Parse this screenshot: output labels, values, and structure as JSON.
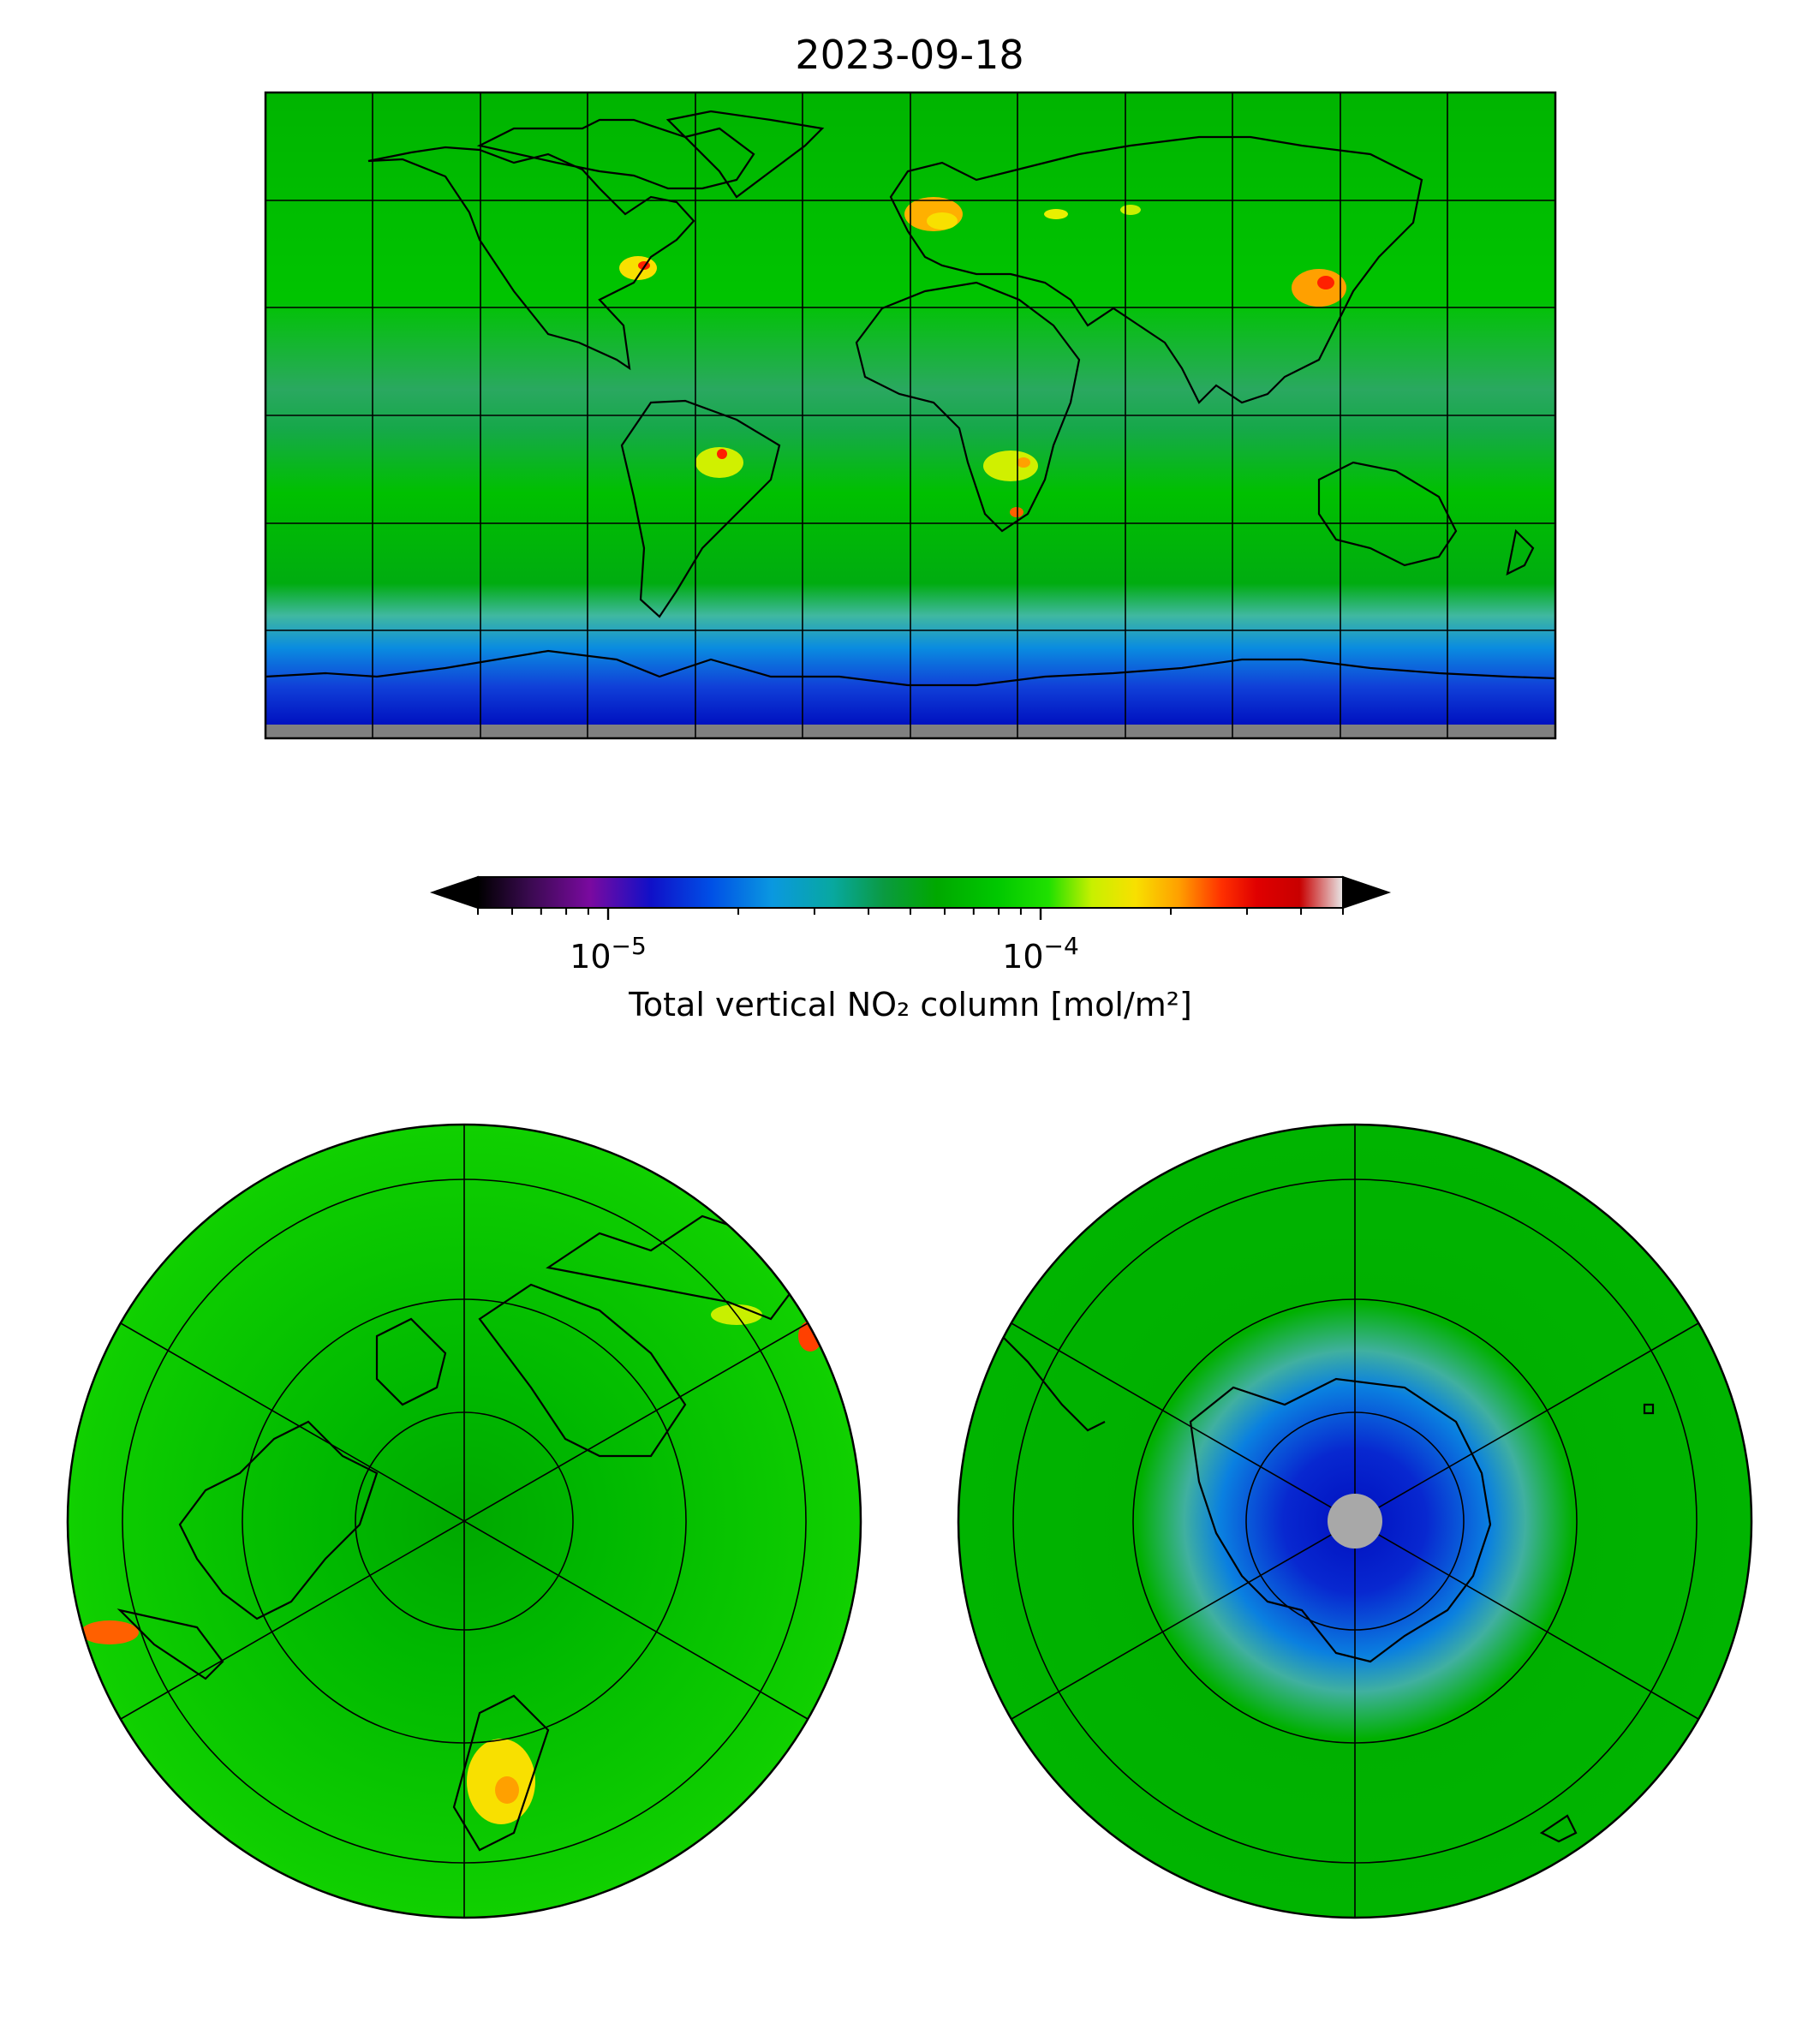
{
  "title": "2023-09-18",
  "colorbar": {
    "label": "Total vertical NO₂ column [mol/m²]",
    "scale": "log",
    "range": [
      5e-06,
      0.0005
    ],
    "extend": "both",
    "ticks": [
      {
        "value": 1e-05,
        "base": "10",
        "exponent": "−5"
      },
      {
        "value": 0.0001,
        "base": "10",
        "exponent": "−4"
      }
    ],
    "colormap_stops": [
      "#000000",
      "#5a0a78",
      "#7a0aa0",
      "#2a10c8",
      "#0018e0",
      "#0a60e6",
      "#0a9ae0",
      "#08a8a0",
      "#0a9a40",
      "#00a800",
      "#00c800",
      "#3de800",
      "#c8f000",
      "#f8e000",
      "#ffa000",
      "#ff3a00",
      "#e00000",
      "#c80000",
      "#d86060",
      "#e8e8e8"
    ],
    "under_color": "#c0c0c0",
    "over_color": "#404040"
  },
  "panels": [
    {
      "projection": "Plate Carrée (global)",
      "background": "#00b000",
      "antarctic_low": "#0020d0",
      "polar_mask": "#808080"
    },
    {
      "projection": "North polar stereographic",
      "background": "#00c800"
    },
    {
      "projection": "South polar stereographic",
      "background": "#00b000",
      "ozone_low": "#0030d0",
      "polar_mask": "#a8a8a8"
    }
  ]
}
